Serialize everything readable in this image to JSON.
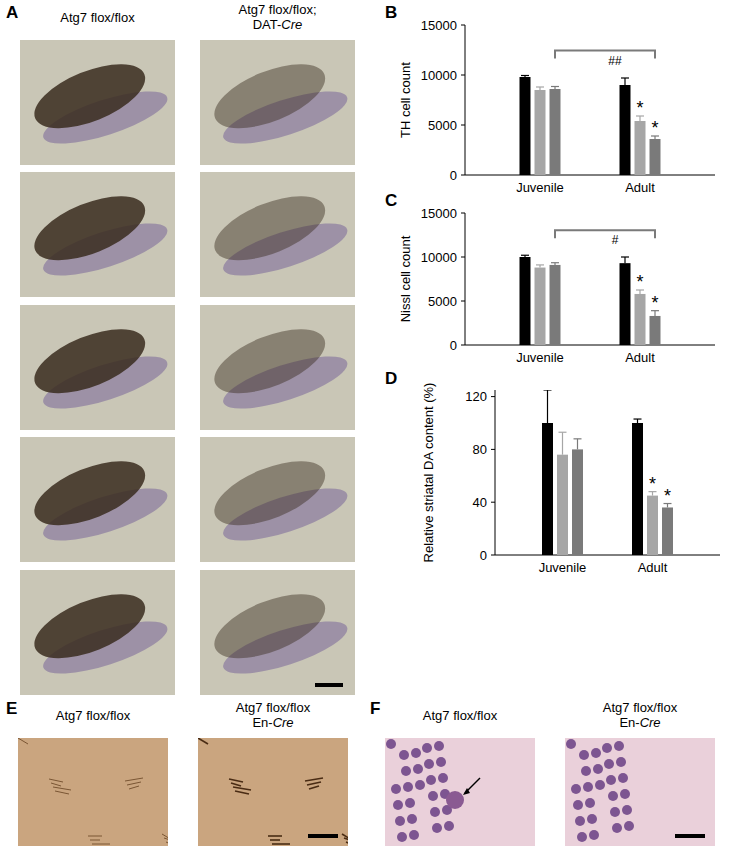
{
  "chart_data": [
    {
      "type": "bar",
      "panel": "B",
      "y_label": "TH cell count",
      "categories": [
        "Juvenile",
        "Adult"
      ],
      "series": [
        {
          "color": "#000000",
          "values": [
            9800,
            9000
          ],
          "errors": [
            150,
            700
          ]
        },
        {
          "color": "#a6a6a6",
          "values": [
            8500,
            5400
          ],
          "errors": [
            300,
            500
          ]
        },
        {
          "color": "#7a7a7a",
          "values": [
            8600,
            3600
          ],
          "errors": [
            250,
            300
          ]
        }
      ],
      "ylim": [
        0,
        15000
      ],
      "yticks": [
        0,
        5000,
        10000,
        15000
      ],
      "annotations": [
        {
          "text": "*",
          "series": 1,
          "category": 1
        },
        {
          "text": "*",
          "series": 2,
          "category": 1
        }
      ],
      "bracket": {
        "text": "##",
        "series": 2,
        "from": 0,
        "to": 1
      }
    },
    {
      "type": "bar",
      "panel": "C",
      "y_label": "Nissl cell count",
      "categories": [
        "Juvenile",
        "Adult"
      ],
      "series": [
        {
          "color": "#000000",
          "values": [
            10000,
            9300
          ],
          "errors": [
            200,
            700
          ]
        },
        {
          "color": "#a6a6a6",
          "values": [
            8800,
            5800
          ],
          "errors": [
            300,
            450
          ]
        },
        {
          "color": "#7a7a7a",
          "values": [
            9100,
            3300
          ],
          "errors": [
            250,
            600
          ]
        }
      ],
      "ylim": [
        0,
        15000
      ],
      "yticks": [
        0,
        5000,
        10000,
        15000
      ],
      "annotations": [
        {
          "text": "*",
          "series": 1,
          "category": 1
        },
        {
          "text": "*",
          "series": 2,
          "category": 1
        }
      ],
      "bracket": {
        "text": "#",
        "series": 2,
        "from": 0,
        "to": 1
      }
    },
    {
      "type": "bar",
      "panel": "D",
      "y_label": "Relative striatal DA content (%)",
      "categories": [
        "Juvenile",
        "Adult"
      ],
      "series": [
        {
          "color": "#000000",
          "values": [
            100,
            100
          ],
          "errors": [
            25,
            3
          ]
        },
        {
          "color": "#a6a6a6",
          "values": [
            76,
            45
          ],
          "errors": [
            17,
            3
          ]
        },
        {
          "color": "#7a7a7a",
          "values": [
            80,
            36
          ],
          "errors": [
            8,
            3
          ]
        }
      ],
      "ylim": [
        0,
        125
      ],
      "yticks": [
        0,
        40,
        80,
        120
      ],
      "annotations": [
        {
          "text": "*",
          "series": 1,
          "category": 1
        },
        {
          "text": "*",
          "series": 2,
          "category": 1
        }
      ]
    }
  ],
  "images": [
    {
      "panel": "A",
      "columns": [
        [
          "Atg7 flox/flox"
        ],
        [
          "Atg7 flox/flox;",
          "DAT-Cre"
        ]
      ]
    },
    {
      "panel": "E",
      "columns": [
        [
          "Atg7 flox/flox"
        ],
        [
          "Atg7 flox/flox",
          "En-Cre"
        ]
      ]
    },
    {
      "panel": "F",
      "columns": [
        [
          "Atg7 flox/flox"
        ],
        [
          "Atg7 flox/flox",
          "En-Cre"
        ]
      ]
    }
  ]
}
